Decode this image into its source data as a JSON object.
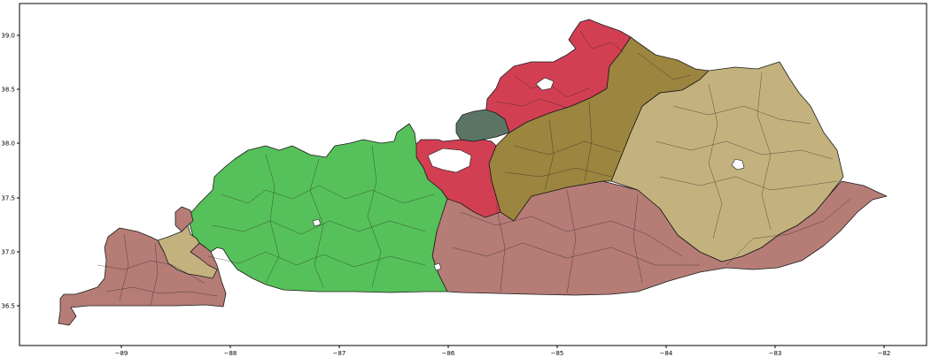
{
  "map": {
    "x_ticks": [
      "−89",
      "−88",
      "−87",
      "−86",
      "−85",
      "−84",
      "−83",
      "−82"
    ],
    "y_ticks": [
      "39.0",
      "38.5",
      "38.0",
      "37.5",
      "37.0",
      "36.5"
    ],
    "colors": {
      "purchase_pennyrile": "#b67c76",
      "pennyrile_west_tan": "#c4b27e",
      "western_green": "#56c15a",
      "louisville_teal": "#5b7466",
      "central_red": "#d23f53",
      "bluegrass_olive": "#9c853f",
      "eastern_tan": "#c4b27e",
      "southern_brown": "#b67c76"
    },
    "regions": [
      {
        "name": "western-region",
        "color_key": "western_green"
      },
      {
        "name": "south-region",
        "color_key": "southern_brown"
      },
      {
        "name": "purchase-region",
        "color_key": "purchase_pennyrile"
      },
      {
        "name": "purchase-tan-region",
        "color_key": "pennyrile_west_tan"
      },
      {
        "name": "central-red-region",
        "color_key": "central_red"
      },
      {
        "name": "louisville-region",
        "color_key": "louisville_teal"
      },
      {
        "name": "bluegrass-region",
        "color_key": "bluegrass_olive"
      },
      {
        "name": "eastern-region",
        "color_key": "eastern_tan"
      }
    ]
  }
}
